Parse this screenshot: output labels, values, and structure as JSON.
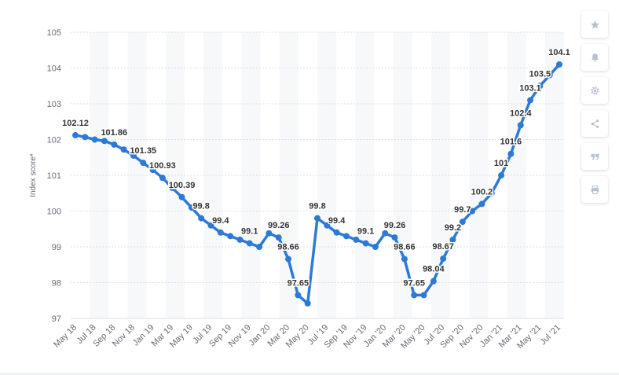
{
  "chart_data": {
    "type": "line",
    "ylabel": "Index score*",
    "ylim": [
      97,
      105
    ],
    "yticks": [
      "97",
      "98",
      "99",
      "100",
      "101",
      "102",
      "103",
      "104",
      "105"
    ],
    "xtick_labels": [
      "May 18",
      "Jul 18",
      "Sep 18",
      "Nov 18",
      "Jan 19",
      "Mar 19",
      "May 19",
      "Jul 19",
      "Sep 19",
      "Nov 19",
      "Jan 20",
      "Mar 20",
      "May 20",
      "Jul '19",
      "Sep '19",
      "Nov '19",
      "Jan '20",
      "Mar '20",
      "May '20",
      "Jul '20",
      "Sep '20",
      "Nov '20",
      "Jan '21",
      "Mar '21",
      "May '21",
      "Jul '21"
    ],
    "grid": true,
    "line_color": "#2d7ad6",
    "series": [
      {
        "values": [
          102.12,
          102.07,
          102.0,
          101.96,
          101.86,
          101.72,
          101.55,
          101.35,
          101.15,
          100.93,
          100.65,
          100.39,
          100.1,
          99.8,
          99.6,
          99.4,
          99.3,
          99.2,
          99.1,
          99.0,
          99.38,
          99.26,
          98.66,
          97.65,
          97.42,
          99.8,
          99.6,
          99.4,
          99.3,
          99.2,
          99.1,
          99.0,
          99.38,
          99.26,
          98.66,
          97.65,
          97.65,
          98.04,
          98.67,
          99.2,
          99.7,
          100.0,
          100.2,
          100.5,
          101.0,
          101.6,
          102.4,
          103.1,
          103.5,
          103.8,
          104.1
        ]
      }
    ],
    "data_labels": [
      {
        "i": 0,
        "text": "102.12"
      },
      {
        "i": 4,
        "text": "101.86"
      },
      {
        "i": 7,
        "text": "101.35"
      },
      {
        "i": 9,
        "text": "100.93"
      },
      {
        "i": 11,
        "text": "100.39"
      },
      {
        "i": 13,
        "text": "99.8"
      },
      {
        "i": 15,
        "text": "99.4"
      },
      {
        "i": 18,
        "text": "99.1"
      },
      {
        "i": 21,
        "text": "99.26"
      },
      {
        "i": 22,
        "text": "98.66"
      },
      {
        "i": 23,
        "text": "97.65"
      },
      {
        "i": 25,
        "text": "99.8"
      },
      {
        "i": 27,
        "text": "99.4"
      },
      {
        "i": 30,
        "text": "99.1"
      },
      {
        "i": 33,
        "text": "99.26"
      },
      {
        "i": 34,
        "text": "98.66"
      },
      {
        "i": 35,
        "text": "97.65"
      },
      {
        "i": 37,
        "text": "98.04"
      },
      {
        "i": 38,
        "text": "98.67"
      },
      {
        "i": 39,
        "text": "99.2"
      },
      {
        "i": 40,
        "text": "99.7"
      },
      {
        "i": 42,
        "text": "100.2"
      },
      {
        "i": 44,
        "text": "101"
      },
      {
        "i": 45,
        "text": "101.6"
      },
      {
        "i": 46,
        "text": "102.4"
      },
      {
        "i": 47,
        "text": "103.1"
      },
      {
        "i": 48,
        "text": "103.5"
      },
      {
        "i": 50,
        "text": "104.1"
      }
    ]
  },
  "toolbar": {
    "buttons": [
      "star-icon",
      "bell-icon",
      "gear-icon",
      "share-icon",
      "quote-icon",
      "print-icon"
    ]
  }
}
